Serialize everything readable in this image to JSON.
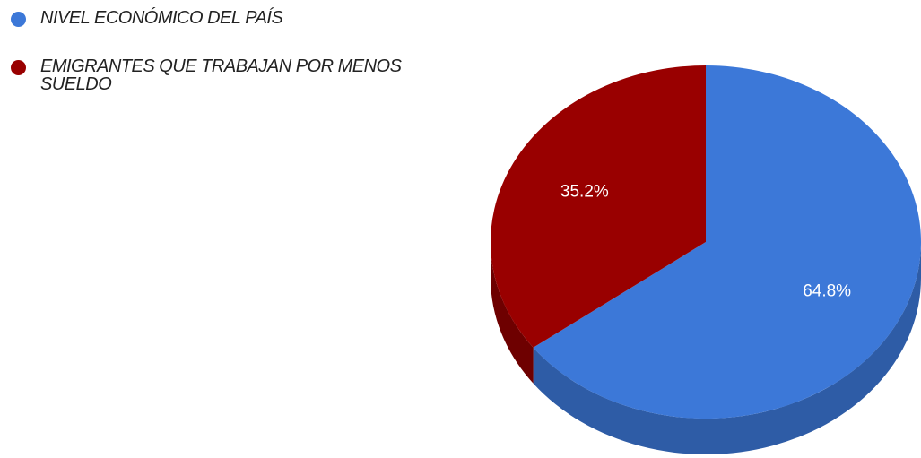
{
  "chart_data": {
    "type": "pie",
    "categories": [
      "NIVEL ECONÓMICO DEL PAÍS",
      "EMIGRANTES QUE TRABAJAN POR MENOS SUELDO"
    ],
    "values": [
      64.8,
      35.2
    ],
    "value_labels": [
      "64.8%",
      "35.2%"
    ],
    "colors": [
      "#3c78d8",
      "#990000"
    ],
    "side_colors": [
      "#2e5ca6",
      "#6e0000"
    ],
    "legend": "top-left"
  }
}
